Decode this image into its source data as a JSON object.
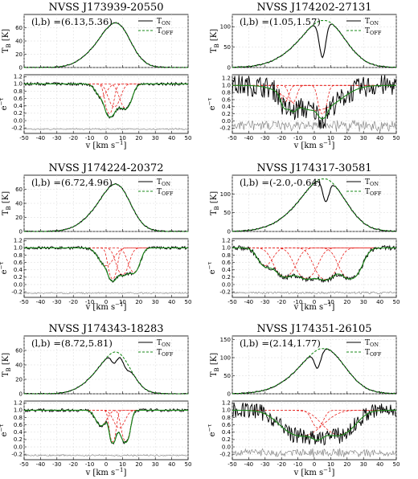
{
  "chart_data": [
    {
      "type": "line",
      "title": "NVSS J173939-20550",
      "lb": "(l,b) =(6.13,5.36)",
      "top": {
        "ylabel": "T_B [K]",
        "ylim": [
          0,
          80
        ],
        "yticks": [
          "0",
          "20",
          "40",
          "60"
        ],
        "peak": 70,
        "absorb": []
      },
      "bottom": {
        "ylabel": "e^-τ",
        "ylim": [
          -0.35,
          1.25
        ],
        "yticks": [
          "-0.2",
          "0.0",
          "0.2",
          "0.4",
          "0.6",
          "0.8",
          "1.0",
          "1.2"
        ],
        "xlabel": "v [km s^-1]",
        "xlim": [
          -50,
          50
        ],
        "noise": 0.04,
        "comps": [
          [
            2,
            0.75,
            2
          ],
          [
            5,
            0.45,
            3
          ],
          [
            12,
            0.5,
            3
          ],
          [
            -3,
            0.2,
            3
          ]
        ]
      },
      "legend": [
        "T_ON",
        "T_OFF"
      ]
    },
    {
      "type": "line",
      "title": "NVSS J174202-27131",
      "lb": "(l,b) =(1.05,1.57)",
      "top": {
        "ylabel": "T_B [K]",
        "ylim": [
          0,
          130
        ],
        "yticks": [
          "0",
          "50",
          "100"
        ],
        "peak": 115,
        "absorb": [
          [
            5,
            90,
            2
          ]
        ]
      },
      "bottom": {
        "ylabel": "e^-τ",
        "ylim": [
          -0.35,
          1.3
        ],
        "yticks": [
          "-0.2",
          "0.0",
          "0.2",
          "0.4",
          "0.6",
          "0.8",
          "1.0",
          "1.2"
        ],
        "xlabel": "v [km s^-1]",
        "xlim": [
          -50,
          50
        ],
        "noise": 0.3,
        "comps": [
          [
            0,
            0.55,
            12
          ],
          [
            5,
            0.75,
            2
          ],
          [
            -18,
            0.3,
            2
          ],
          [
            -13,
            0.3,
            2
          ]
        ]
      },
      "legend": [
        "T_ON",
        "T_OFF"
      ]
    },
    {
      "type": "line",
      "title": "NVSS J174224-20372",
      "lb": "(l,b) =(6.72,4.96)",
      "top": {
        "ylabel": "T_B [K]",
        "ylim": [
          0,
          80
        ],
        "yticks": [
          "0",
          "20",
          "40",
          "60"
        ],
        "peak": 70,
        "absorb": []
      },
      "bottom": {
        "ylabel": "e^-τ",
        "ylim": [
          -0.35,
          1.25
        ],
        "yticks": [
          "-0.2",
          "0.0",
          "0.2",
          "0.4",
          "0.6",
          "0.8",
          "1.0",
          "1.2"
        ],
        "xlabel": "v [km s^-1]",
        "xlim": [
          -50,
          50
        ],
        "noise": 0.04,
        "comps": [
          [
            4,
            0.85,
            2
          ],
          [
            10,
            0.6,
            3
          ],
          [
            17,
            0.5,
            3
          ],
          [
            0,
            0.3,
            4
          ]
        ]
      },
      "legend": [
        "T_ON",
        "T_OFF"
      ]
    },
    {
      "type": "line",
      "title": "NVSS J174317-30581",
      "lb": "(l,b) =(-2.0,-0.64)",
      "top": {
        "ylabel": "T_B [K]",
        "ylim": [
          0,
          150
        ],
        "yticks": [
          "0",
          "50",
          "100"
        ],
        "peak": 140,
        "absorb": [
          [
            7,
            60,
            2
          ]
        ]
      },
      "bottom": {
        "ylabel": "e^-τ",
        "ylim": [
          -0.35,
          1.25
        ],
        "yticks": [
          "-0.2",
          "0.0",
          "0.2",
          "0.4",
          "0.6",
          "0.8",
          "1.0",
          "1.2"
        ],
        "xlabel": "v [km s^-1]",
        "xlim": [
          -50,
          50
        ],
        "noise": 0.06,
        "comps": [
          [
            -18,
            0.7,
            5
          ],
          [
            -5,
            0.8,
            5
          ],
          [
            7,
            0.9,
            5
          ],
          [
            22,
            0.85,
            5
          ],
          [
            -30,
            0.3,
            4
          ]
        ]
      },
      "legend": [
        "T_ON",
        "T_OFF"
      ]
    },
    {
      "type": "line",
      "title": "NVSS J174343-18283",
      "lb": "(l,b) =(8.72,5.81)",
      "top": {
        "ylabel": "T_B [K]",
        "ylim": [
          0,
          80
        ],
        "yticks": [
          "0",
          "20",
          "40",
          "60"
        ],
        "peak": 60,
        "absorb": [
          [
            5,
            15,
            2
          ],
          [
            12,
            10,
            2
          ]
        ]
      },
      "bottom": {
        "ylabel": "e^-τ",
        "ylim": [
          -0.35,
          1.25
        ],
        "yticks": [
          "-0.2",
          "0.0",
          "0.2",
          "0.4",
          "0.6",
          "0.8",
          "1.0",
          "1.2"
        ],
        "xlabel": "v [km s^-1]",
        "xlim": [
          -50,
          50
        ],
        "noise": 0.04,
        "comps": [
          [
            4,
            0.9,
            1.5
          ],
          [
            12,
            0.85,
            2
          ],
          [
            -3,
            0.25,
            3
          ],
          [
            8,
            0.3,
            3
          ]
        ]
      },
      "legend": [
        "T_ON",
        "T_OFF"
      ]
    },
    {
      "type": "line",
      "title": "NVSS J174351-26105",
      "lb": "(l,b) =(2.14,1.77)",
      "top": {
        "ylabel": "T_B [K]",
        "ylim": [
          0,
          160
        ],
        "yticks": [
          "0",
          "50",
          "100",
          "150"
        ],
        "peak": 125,
        "absorb": [
          [
            2,
            50,
            2
          ]
        ]
      },
      "bottom": {
        "ylabel": "e^-τ",
        "ylim": [
          -0.35,
          1.25
        ],
        "yticks": [
          "-0.2",
          "0.0",
          "0.2",
          "0.4",
          "0.6",
          "0.8",
          "1.0",
          "1.2"
        ],
        "xlabel": "v [km s^-1]",
        "xlim": [
          -50,
          50
        ],
        "noise": 0.22,
        "comps": [
          [
            -8,
            0.55,
            10
          ],
          [
            15,
            0.5,
            8
          ],
          [
            2,
            0.3,
            3
          ]
        ]
      },
      "legend": [
        "T_ON",
        "T_OFF"
      ]
    }
  ],
  "xticks": [
    "-50",
    "-40",
    "-30",
    "-20",
    "-10",
    "0",
    "10",
    "20",
    "30",
    "40",
    "50"
  ],
  "colors": {
    "on": "#000000",
    "off": "#1a8a1a",
    "fit": "#e8231f",
    "resid": "#8a8a8a"
  }
}
